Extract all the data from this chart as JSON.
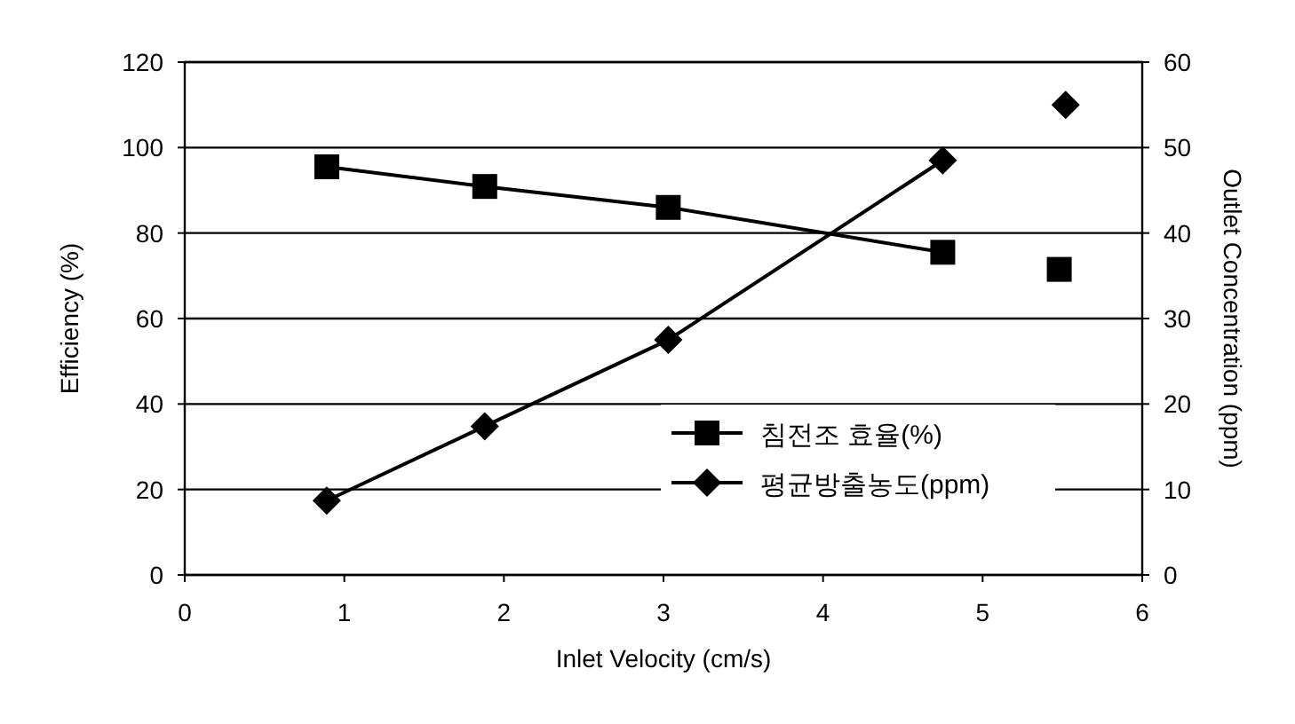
{
  "chart_data": {
    "type": "line",
    "xlabel": "Inlet Velocity (cm/s)",
    "ylabel": "Efficiency (%)",
    "y2label": "Outlet Concentration (ppm)",
    "xlim": [
      0,
      6
    ],
    "xticks": [
      0,
      1,
      2,
      3,
      4,
      5,
      6
    ],
    "ylim": [
      0,
      120
    ],
    "yticks": [
      0,
      20,
      40,
      60,
      80,
      100,
      120
    ],
    "y2lim": [
      0,
      60
    ],
    "y2ticks": [
      0,
      10,
      20,
      30,
      40,
      50,
      60
    ],
    "grid": "y",
    "legend": "bottom right",
    "series": [
      {
        "name": "침전조 효율(%)",
        "marker": "square",
        "color": "#000000",
        "x": [
          0.89,
          1.88,
          3.03,
          4.75
        ],
        "values": [
          95.5,
          90.9,
          86,
          75.5
        ]
      },
      {
        "name": "평균방출농도(ppm)",
        "marker": "diamond",
        "axis": "y2",
        "color": "#000000",
        "x": [
          0.89,
          1.88,
          3.03,
          4.75
        ],
        "values": [
          8.7,
          17.4,
          27.5,
          48.5
        ]
      },
      {
        "type": "scatter",
        "marker": "square",
        "color": "#000000",
        "x": [
          5.48
        ],
        "values": [
          71.5
        ]
      },
      {
        "type": "scatter",
        "marker": "diamond",
        "axis": "y2",
        "color": "#000000",
        "x": [
          5.52
        ],
        "values": [
          55
        ]
      }
    ]
  }
}
